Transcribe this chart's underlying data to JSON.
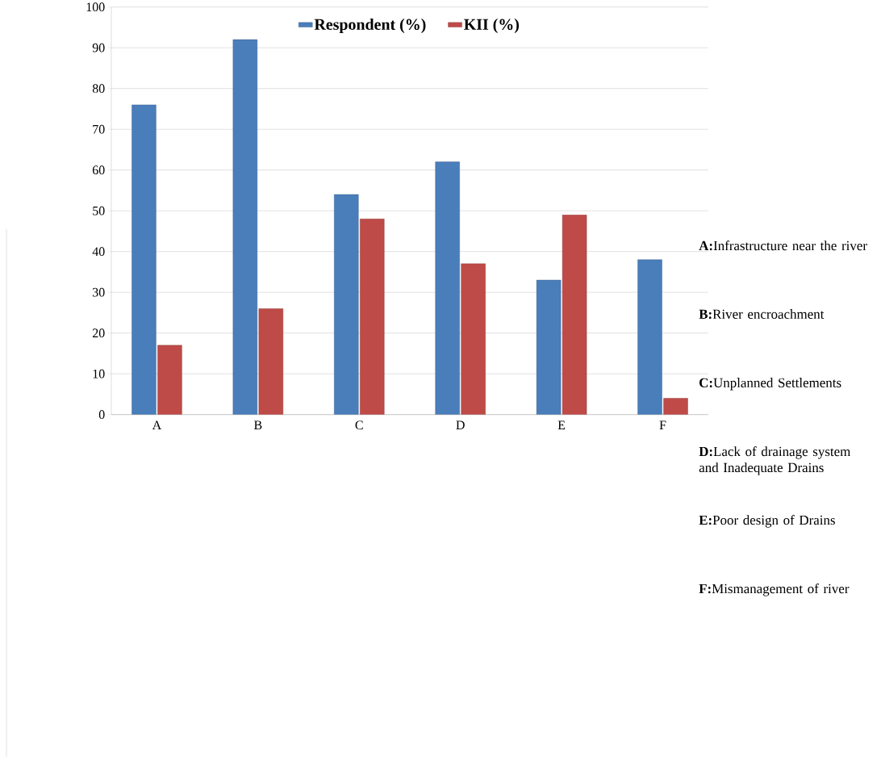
{
  "chart_data": {
    "type": "bar",
    "categories": [
      "A",
      "B",
      "C",
      "D",
      "E",
      "F"
    ],
    "series": [
      {
        "name": "Respondent (%)",
        "color": "#4a7ebb",
        "values": [
          76,
          92,
          54,
          62,
          33,
          38
        ]
      },
      {
        "name": "KII (%)",
        "color": "#be4b48",
        "values": [
          17,
          26,
          48,
          37,
          49,
          4
        ]
      }
    ],
    "ylim": [
      0,
      100
    ],
    "yticks": [
      0,
      10,
      20,
      30,
      40,
      50,
      60,
      70,
      80,
      90,
      100
    ],
    "grid": "y",
    "legend": "top",
    "annotations": [
      "**A:**Infrastructure near the river",
      "**B:**River encroachment",
      "**C:**Unplanned Settlements",
      "**D:**Lack of drainage system and Inadequate Drains",
      "**E:**Poor design of Drains",
      "**F:**Mismanagement of river"
    ]
  }
}
